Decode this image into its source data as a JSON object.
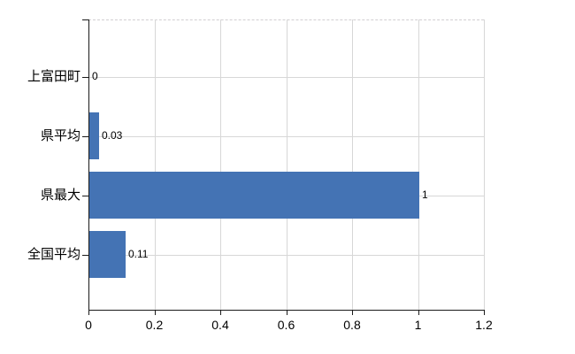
{
  "chart_data": {
    "type": "bar",
    "orientation": "horizontal",
    "title": "",
    "xlabel": "",
    "ylabel": "",
    "categories": [
      "上富田町",
      "県平均",
      "県最大",
      "全国平均"
    ],
    "values": [
      0,
      0.03,
      1,
      0.11
    ],
    "value_labels": [
      "0",
      "0.03",
      "1",
      "0.11"
    ],
    "series_name": "",
    "xlim": [
      0,
      1.2
    ],
    "x_ticks": [
      0,
      0.2,
      0.4,
      0.6,
      0.8,
      1,
      1.2
    ],
    "x_tick_labels": [
      "0",
      "0.2",
      "0.4",
      "0.6",
      "0.8",
      "1",
      "1.2"
    ],
    "grid": true,
    "legend": false,
    "colors": {
      "bar": "#4473b4",
      "gridline": "#d7d7d7",
      "axis": "#1a1a1a",
      "text": "#000000",
      "background": "#ffffff"
    }
  }
}
